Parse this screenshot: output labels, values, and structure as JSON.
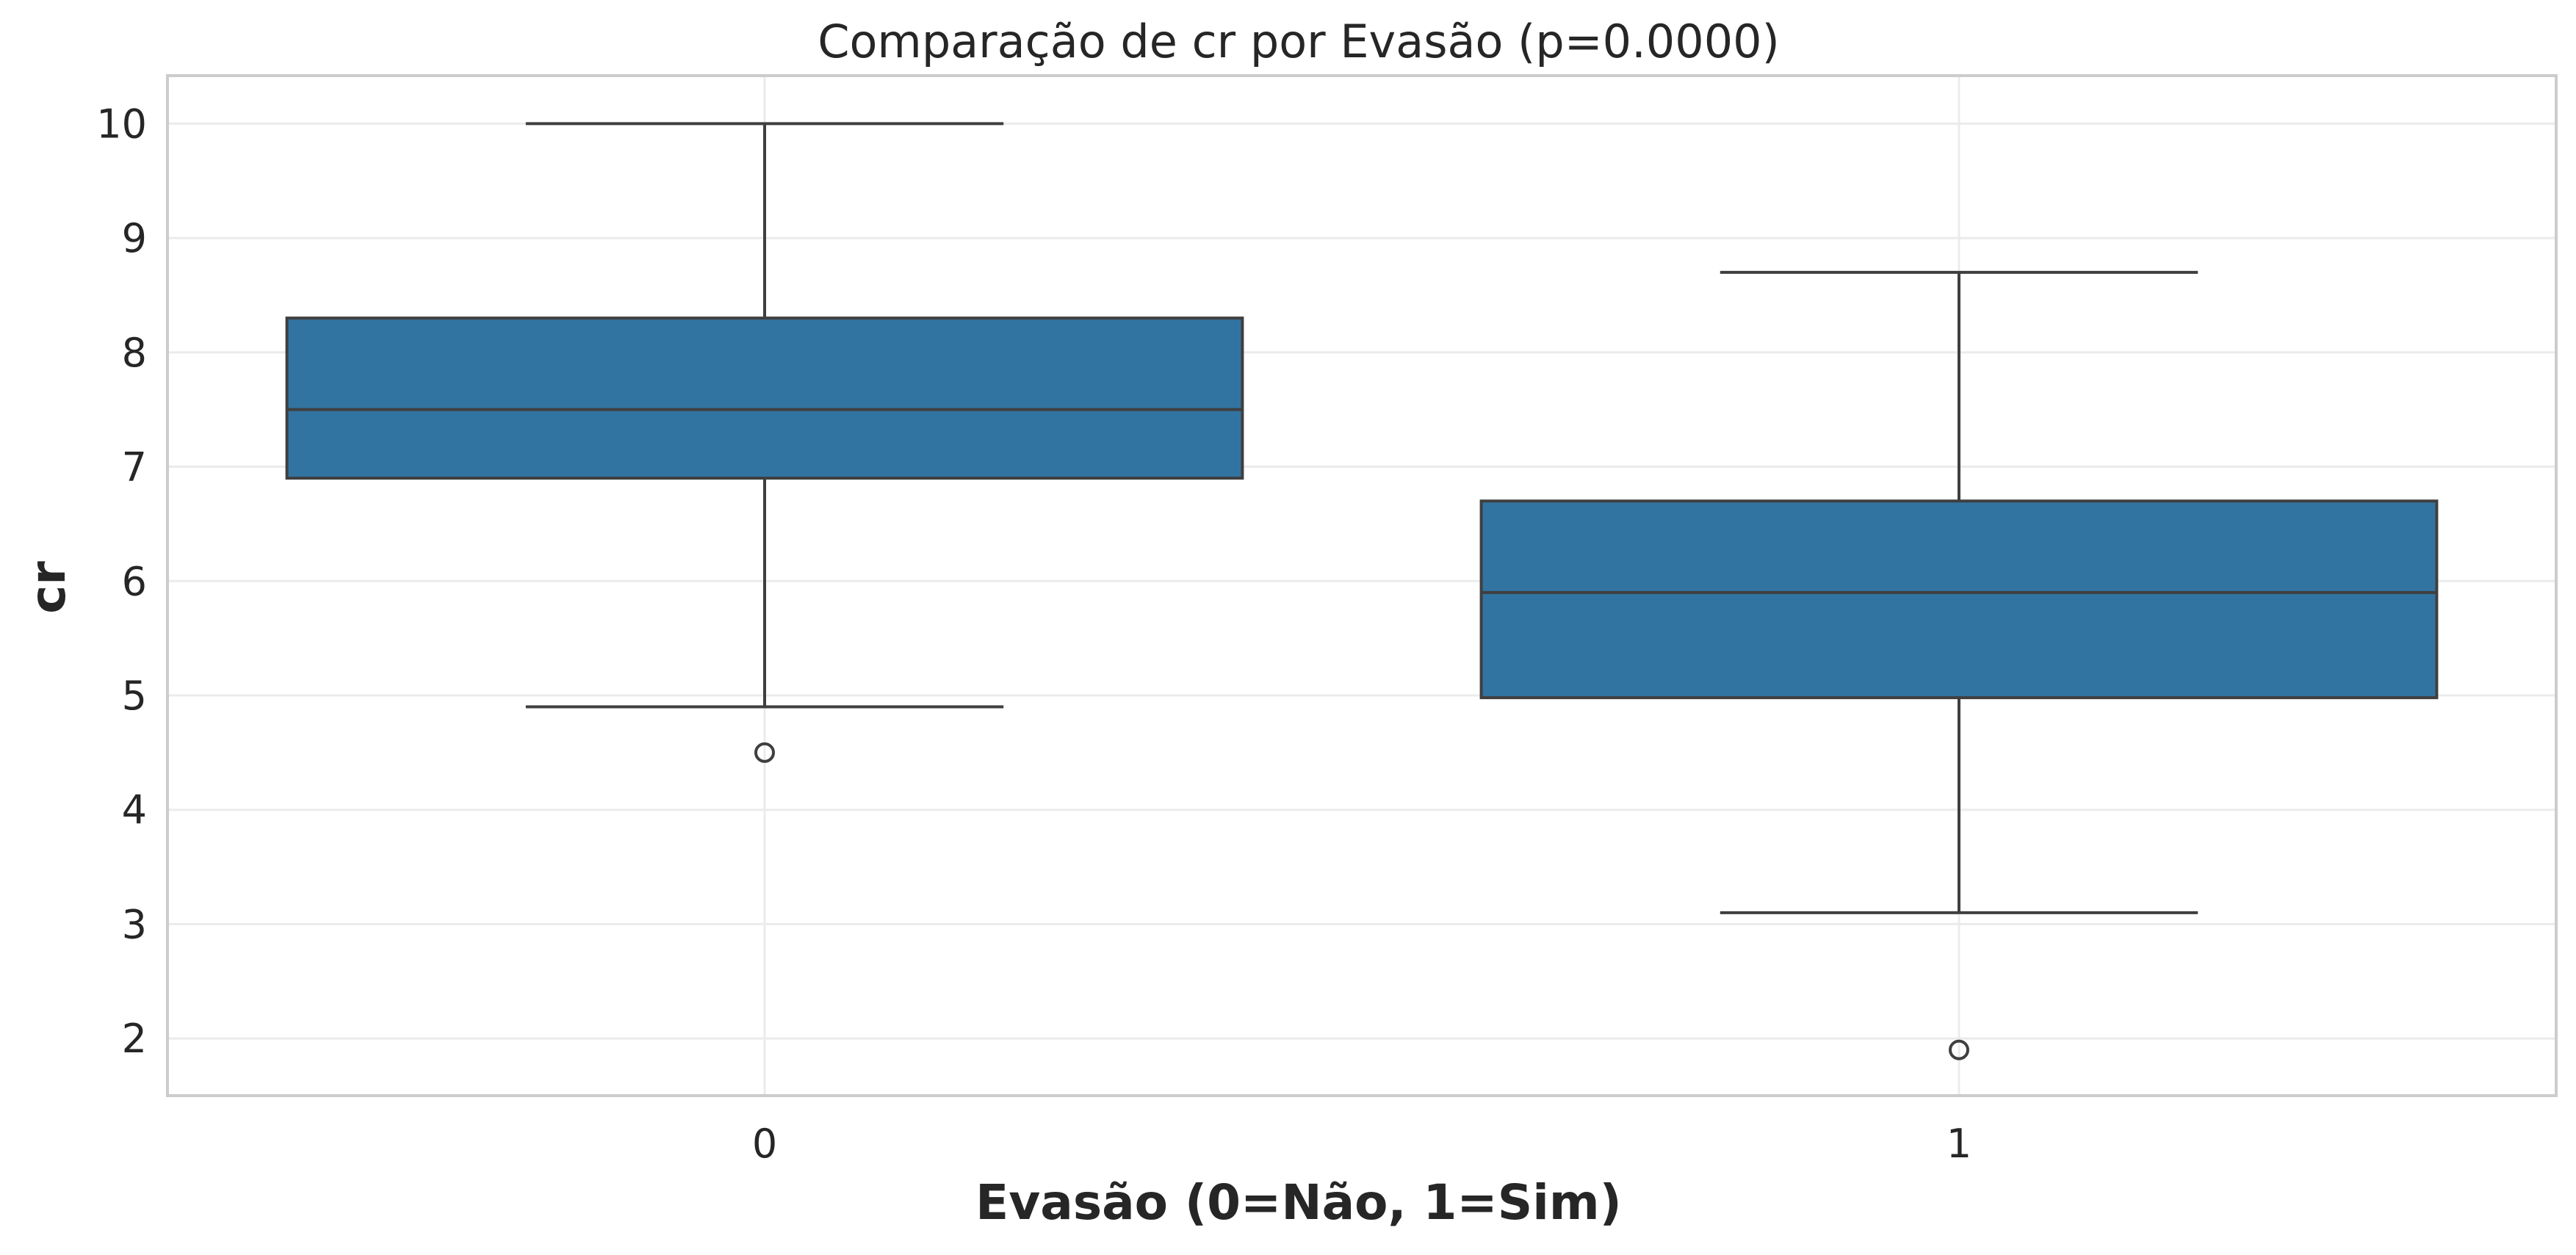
{
  "chart_data": {
    "type": "box",
    "title": "Comparação de cr por Evasão (p=0.0000)",
    "xlabel": "Evasão (0=Não, 1=Sim)",
    "ylabel": "cr",
    "ylim": [
      1.5,
      10.42
    ],
    "yticks": [
      2,
      3,
      4,
      5,
      6,
      7,
      8,
      9,
      10
    ],
    "grid": true,
    "categories": [
      "0",
      "1"
    ],
    "boxes": [
      {
        "category": "0",
        "whisker_low": 4.9,
        "q1": 6.9,
        "median": 7.5,
        "q3": 8.3,
        "whisker_high": 10.0,
        "outliers": [
          4.5
        ]
      },
      {
        "category": "1",
        "whisker_low": 3.1,
        "q1": 4.98,
        "median": 5.9,
        "q3": 6.7,
        "whisker_high": 8.7,
        "outliers": [
          1.9
        ]
      }
    ],
    "colors": {
      "box_fill": "#3274a1",
      "line": "#3f3f3f",
      "grid": "#ebebeb",
      "frame": "#cccccc"
    }
  }
}
